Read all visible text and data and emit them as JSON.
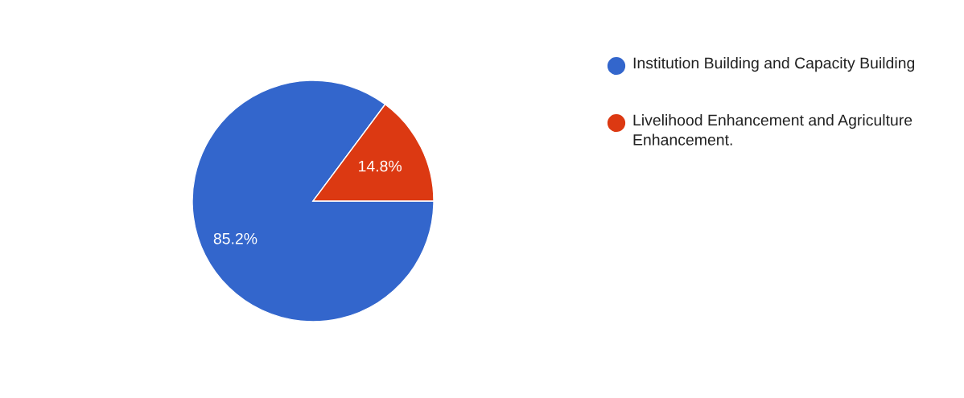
{
  "chart_data": {
    "type": "pie",
    "categories": [
      "Institution Building and Capacity Building",
      "Livelihood Enhancement and Agriculture Enhancement."
    ],
    "values": [
      85.2,
      14.8
    ],
    "value_labels": [
      "85.2%",
      "14.8%"
    ],
    "colors": [
      "#3366cc",
      "#dc3912"
    ],
    "legend": "right"
  }
}
